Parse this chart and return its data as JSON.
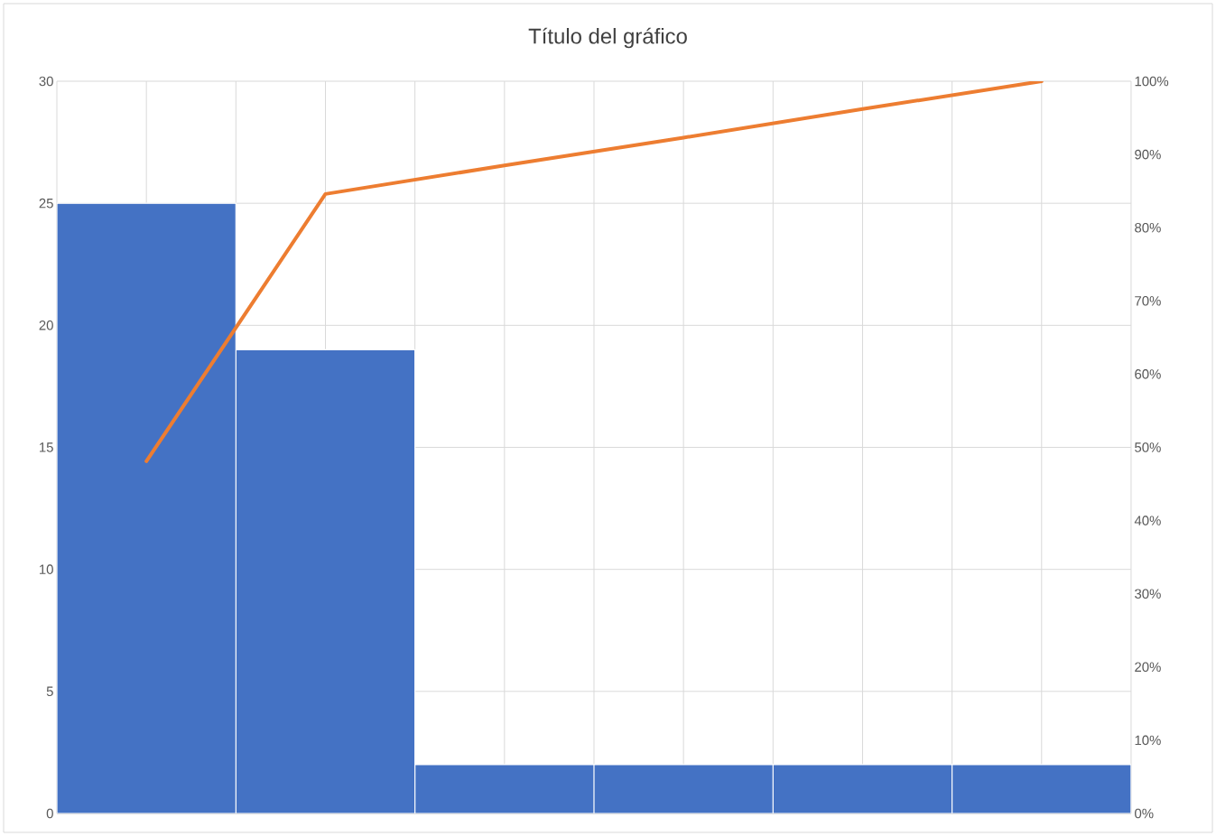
{
  "chart_data": {
    "type": "bar",
    "title": "Título del gráfico",
    "categories": [
      null,
      null,
      null,
      null,
      null,
      null
    ],
    "series": [
      {
        "color": "#4472c4",
        "values": [
          25,
          19,
          2,
          2,
          2,
          2
        ]
      },
      {
        "type": "line",
        "axis": "y2",
        "color": "#ed7d31",
        "values": [
          48.1,
          84.6,
          88.5,
          92.3,
          96.2,
          100
        ]
      }
    ],
    "ylim": [
      0,
      30
    ],
    "yticks": [
      0,
      5,
      10,
      15,
      20,
      25,
      30
    ],
    "y2lim": [
      0,
      100
    ],
    "y2ticks": [
      {
        "value": 0,
        "label": "0%"
      },
      {
        "value": 10,
        "label": "10%"
      },
      {
        "value": 20,
        "label": "20%"
      },
      {
        "value": 30,
        "label": "30%"
      },
      {
        "value": 40,
        "label": "40%"
      },
      {
        "value": 50,
        "label": "50%"
      },
      {
        "value": 60,
        "label": "60%"
      },
      {
        "value": 70,
        "label": "70%"
      },
      {
        "value": 80,
        "label": "80%"
      },
      {
        "value": 90,
        "label": "90%"
      },
      {
        "value": 100,
        "label": "100%"
      }
    ],
    "grid": true,
    "marker": "none",
    "line_style": "solid"
  }
}
